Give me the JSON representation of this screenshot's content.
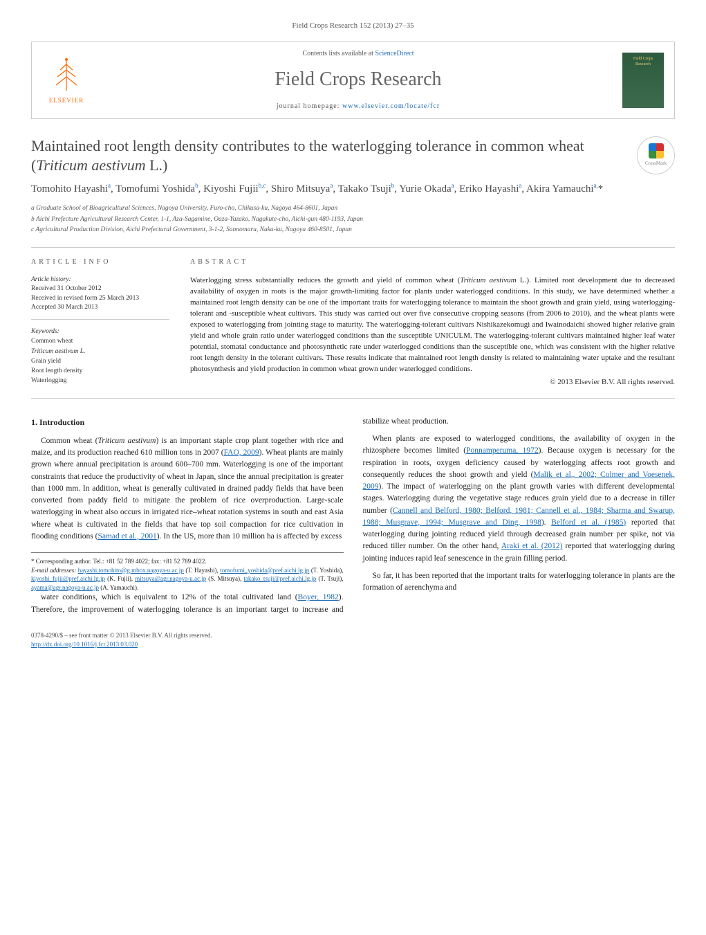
{
  "journal_ref": "Field Crops Research 152 (2013) 27–35",
  "header": {
    "publisher_label": "ELSEVIER",
    "contents_prefix": "Contents lists available at ",
    "contents_link": "ScienceDirect",
    "journal_name": "Field Crops Research",
    "homepage_prefix": "journal homepage: ",
    "homepage_link": "www.elsevier.com/locate/fcr",
    "cover_text": "Field Crops Research"
  },
  "crossmark_label": "CrossMark",
  "title_html": "Maintained root length density contributes to the waterlogging tolerance in common wheat (<em>Triticum aestivum</em> L.)",
  "authors_html": "Tomohito Hayashi<sup>a</sup>, Tomofumi Yoshida<sup>b</sup>, Kiyoshi Fujii<sup>b,c</sup>, Shiro Mitsuya<sup>a</sup>, Takako Tsuji<sup>b</sup>, Yurie Okada<sup>a</sup>, Eriko Hayashi<sup>a</sup>, Akira Yamauchi<sup>a,</sup>*",
  "affiliations": [
    "a Graduate School of Bioagricultural Sciences, Nagoya University, Furo-cho, Chikusa-ku, Nagoya 464-8601, Japan",
    "b Aichi Prefecture Agricultural Research Center, 1-1, Aza-Sagamine, Oaza-Yazako, Nagakute-cho, Aichi-gun 480-1193, Japan",
    "c Agricultural Production Division, Aichi Prefectural Government, 3-1-2, Sannomaru, Naka-ku, Nagoya 460-8501, Japan"
  ],
  "info_label": "article info",
  "abstract_label": "abstract",
  "history": {
    "head": "Article history:",
    "received": "Received 31 October 2012",
    "revised": "Received in revised form 25 March 2013",
    "accepted": "Accepted 30 March 2013"
  },
  "keywords": {
    "head": "Keywords:",
    "items": [
      "Common wheat",
      "Triticum aestivum L.",
      "Grain yield",
      "Root length density",
      "Waterlogging"
    ]
  },
  "abstract_html": "Waterlogging stress substantially reduces the growth and yield of common wheat (<em>Triticum aestivum</em> L.). Limited root development due to decreased availability of oxygen in roots is the major growth-limiting factor for plants under waterlogged conditions. In this study, we have determined whether a maintained root length density can be one of the important traits for waterlogging tolerance to maintain the shoot growth and grain yield, using waterlogging-tolerant and -susceptible wheat cultivars. This study was carried out over five consecutive cropping seasons (from 2006 to 2010), and the wheat plants were exposed to waterlogging from jointing stage to maturity. The waterlogging-tolerant cultivars Nishikazekomugi and Iwainodaichi showed higher relative grain yield and whole grain ratio under waterlogged conditions than the susceptible UNICULM. The waterlogging-tolerant cultivars maintained higher leaf water potential, stomatal conductance and photosynthetic rate under waterlogged conditions than the susceptible one, which was consistent with the higher relative root length density in the tolerant cultivars. These results indicate that maintained root length density is related to maintaining water uptake and the resultant photosynthesis and yield production in common wheat grown under waterlogged conditions.",
  "copyright": "© 2013 Elsevier B.V. All rights reserved.",
  "intro_heading": "1. Introduction",
  "para1_html": "Common wheat (<em>Triticum aestivum</em>) is an important staple crop plant together with rice and maize, and its production reached 610 million tons in 2007 (<a>FAO, 2009</a>). Wheat plants are mainly grown where annual precipitation is around 600–700 mm. Waterlogging is one of the important constraints that reduce the productivity of wheat in Japan, since the annual precipitation is greater than 1000 mm. In addition, wheat is generally cultivated in drained paddy fields that have been converted from paddy field to mitigate the problem of rice overproduction. Large-scale waterlogging in wheat also occurs in irrigated rice–wheat rotation systems in south and east Asia where wheat is cultivated in the fields that have top soil compaction for rice cultivation in flooding conditions (<a>Samad et al., 2001</a>). In the US, more than 10 million ha is affected by excess",
  "para1b_html": "water conditions, which is equivalent to 12% of the total cultivated land (<a>Boyer, 1982</a>). Therefore, the improvement of waterlogging tolerance is an important target to increase and stabilize wheat production.",
  "para2_html": "When plants are exposed to waterlogged conditions, the availability of oxygen in the rhizosphere becomes limited (<a>Ponnamperuma, 1972</a>). Because oxygen is necessary for the respiration in roots, oxygen deficiency caused by waterlogging affects root growth and consequently reduces the shoot growth and yield (<a>Malik et al., 2002; Colmer and Voesenek, 2009</a>). The impact of waterlogging on the plant growth varies with different developmental stages. Waterlogging during the vegetative stage reduces grain yield due to a decrease in tiller number (<a>Cannell and Belford, 1980; Belford, 1981; Cannell et al., 1984; Sharma and Swarup, 1988; Musgrave, 1994; Musgrave and Ding, 1998</a>). <a>Belford et al. (1985)</a> reported that waterlogging during jointing reduced yield through decreased grain number per spike, not via reduced tiller number. On the other hand, <a>Araki et al. (2012)</a> reported that waterlogging during jointing induces rapid leaf senescence in the grain filling period.",
  "para3_html": "So far, it has been reported that the important traits for waterlogging tolerance in plants are the formation of aerenchyma and",
  "footnote": {
    "corr": "* Corresponding author. Tel.: +81 52 789 4022; fax: +81 52 789 4022.",
    "emails_label": "E-mail addresses:",
    "emails_html": "<a>hayashi.tomohito@g.mbox.nagoya-u.ac.jp</a> (T. Hayashi), <a>tomofumi_yoshida@pref.aichi.lg.jp</a> (T. Yoshida), <a>kiyoshi_fujii@pref.aichi.lg.jp</a> (K. Fujii), <a>mitsuya@agr.nagoya-u.ac.jp</a> (S. Mitsuya), <a>takako_tsuji@pref.aichi.lg.jp</a> (T. Tsuji), <a>ayama@agr.nagoya-u.ac.jp</a> (A. Yamauchi)."
  },
  "footer": {
    "left_line1": "0378-4290/$ – see front matter © 2013 Elsevier B.V. All rights reserved.",
    "left_doi": "http://dx.doi.org/10.1016/j.fcr.2013.03.020"
  },
  "colors": {
    "link": "#1a6bb5",
    "publisher_orange": "#ff6600",
    "text": "#333333",
    "heading": "#4a4a4a",
    "border": "#cccccc"
  }
}
